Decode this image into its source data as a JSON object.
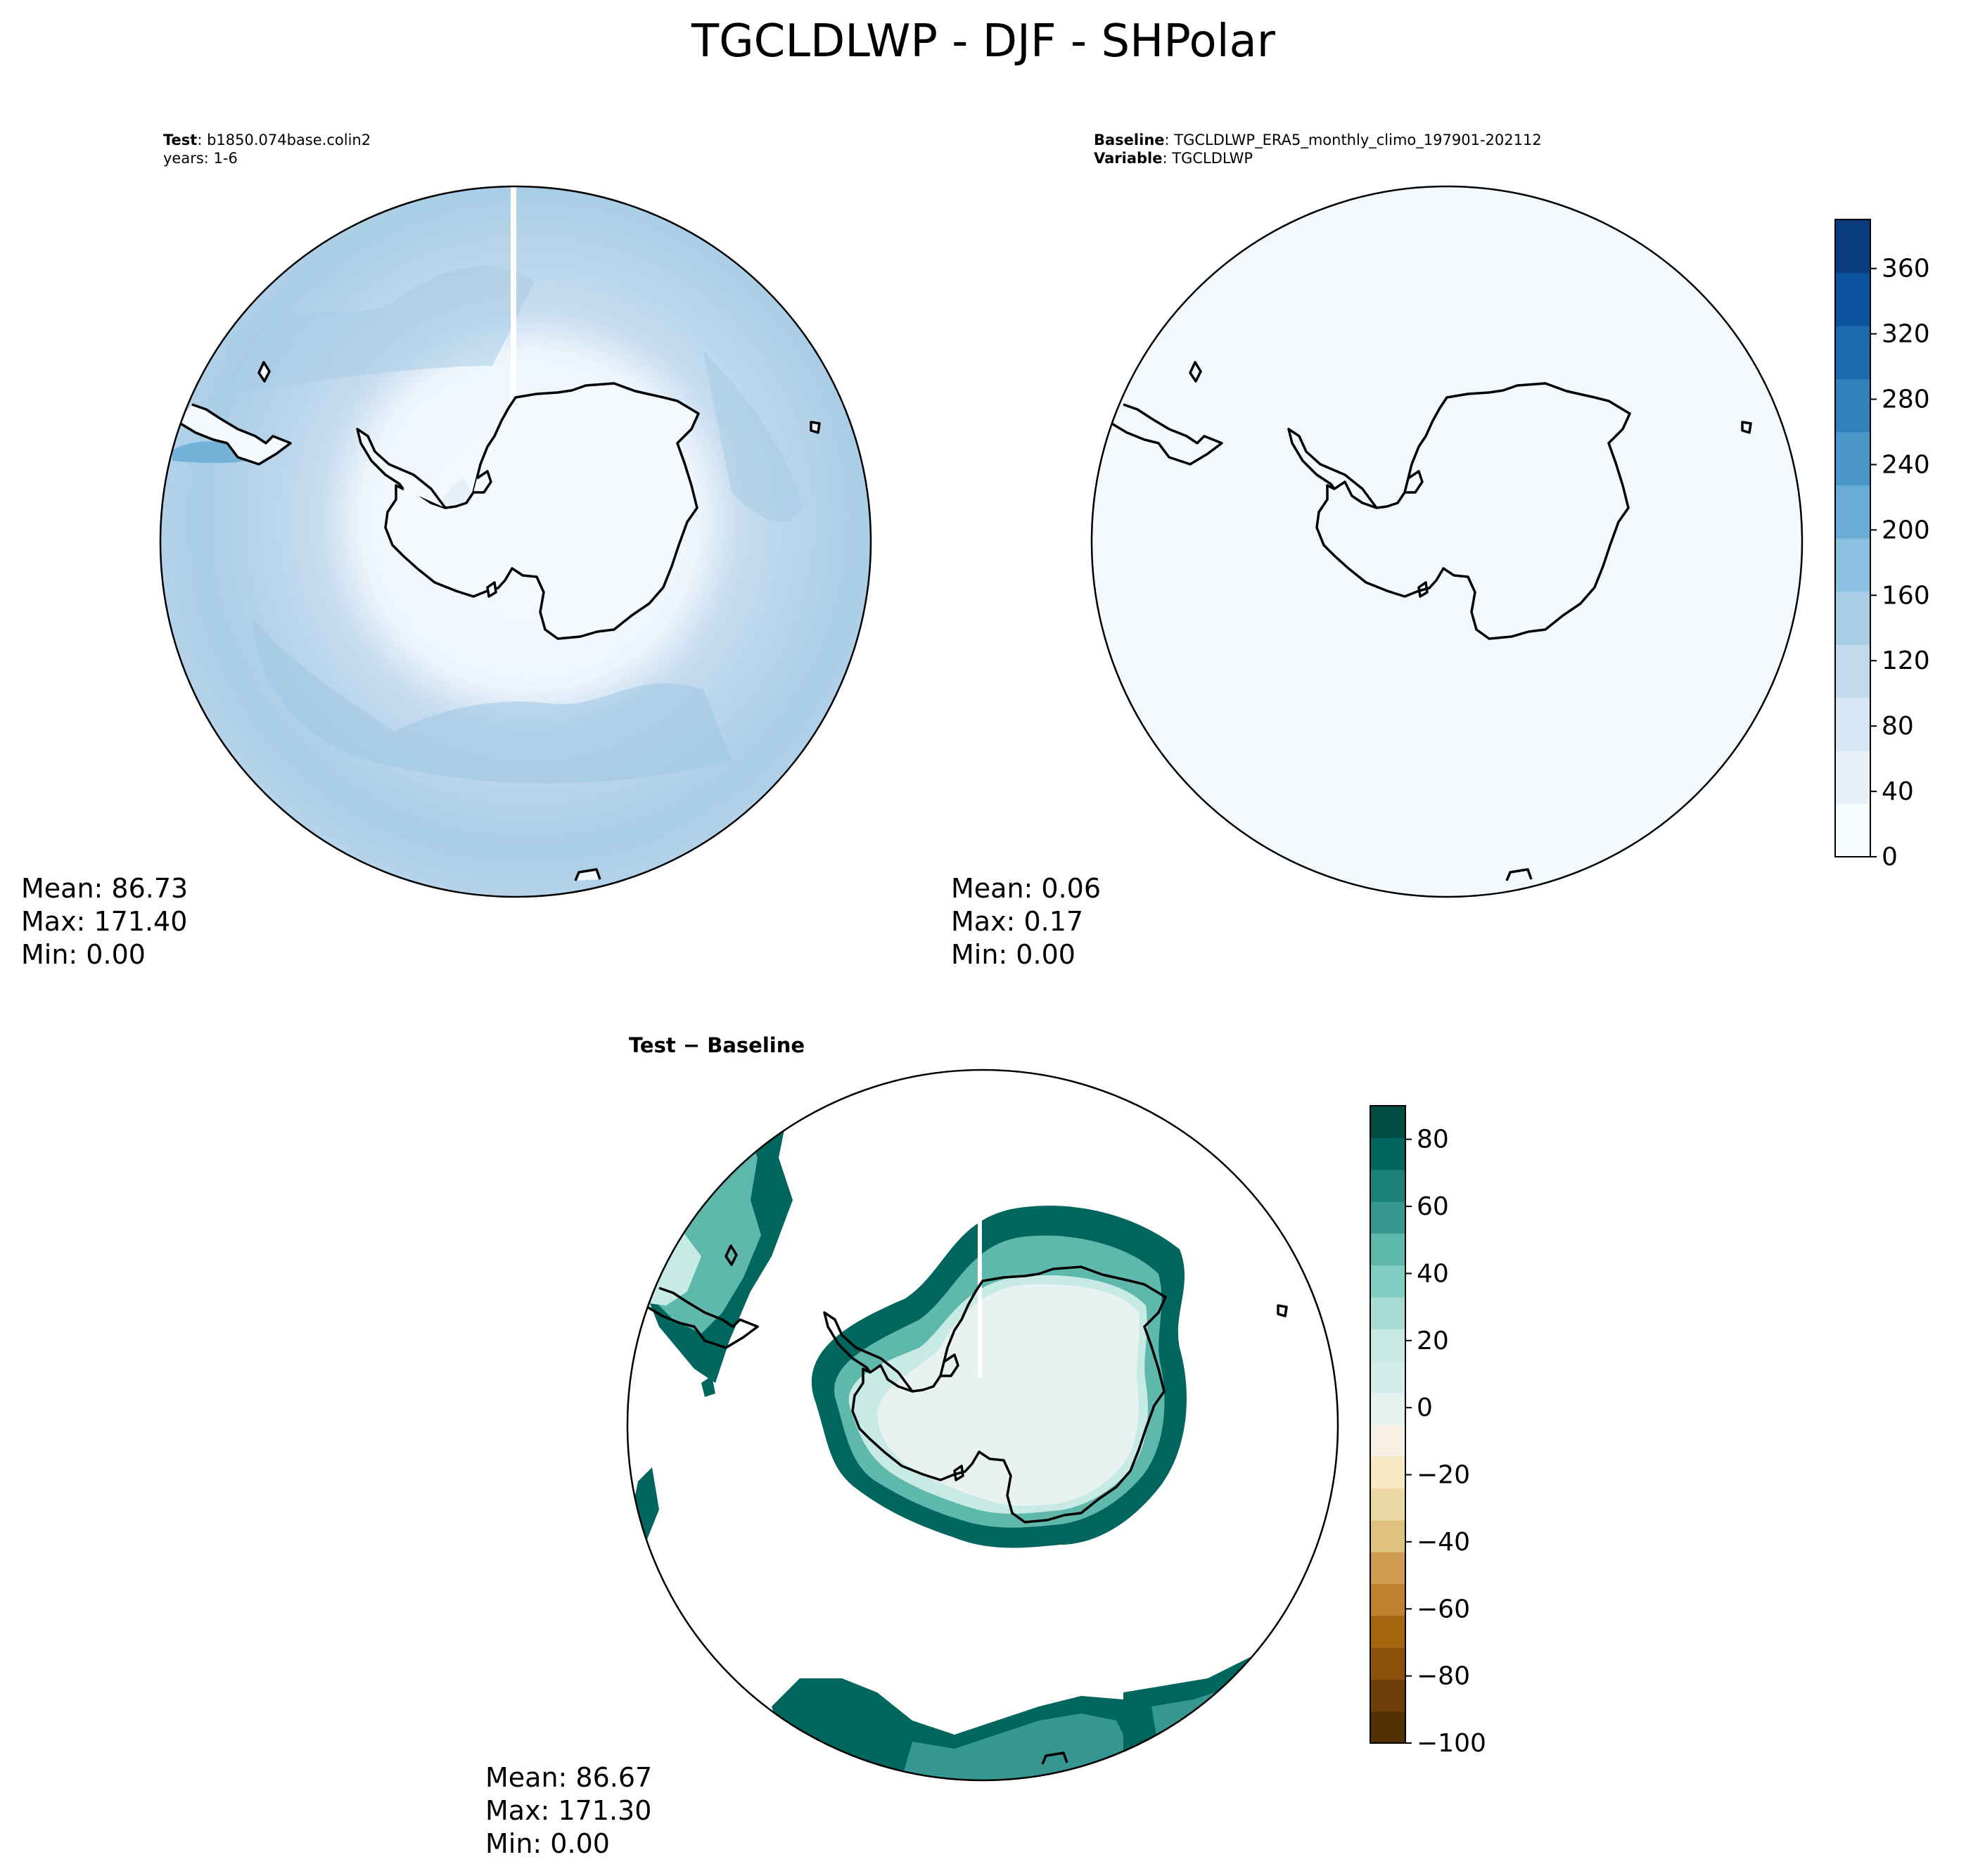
{
  "figure": {
    "suptitle": "TGCLDLWP - DJF - SHPolar"
  },
  "chart_data": [
    {
      "type": "heatmap",
      "projection": "south-polar-stereographic",
      "header": [
        {
          "bold": "Test",
          "text": ": b1850.074base.colin2"
        },
        {
          "bold": "",
          "text": "years: 1-6"
        }
      ],
      "stats": {
        "mean": "Mean: 86.73",
        "max": "Max: 171.40",
        "min": "Min:  0.00"
      },
      "field_description": "ocean values mostly 80-170, lowest over the ice sheet interior",
      "colormap": "Blues"
    },
    {
      "type": "heatmap",
      "projection": "south-polar-stereographic",
      "header": [
        {
          "bold": "Baseline",
          "text": ": TGCLDLWP_ERA5_monthly_climo_197901-202112"
        },
        {
          "bold": "Variable",
          "text": ": TGCLDLWP"
        }
      ],
      "stats": {
        "mean": "Mean:  0.06",
        "max": "Max:  0.17",
        "min": "Min:  0.00"
      },
      "colormap": "Blues",
      "colorbar": {
        "ticks": [
          "0",
          "40",
          "80",
          "120",
          "160",
          "200",
          "240",
          "280",
          "320",
          "360"
        ],
        "tick_values": [
          0,
          40,
          80,
          120,
          160,
          200,
          240,
          280,
          320,
          360
        ],
        "range": [
          0,
          390
        ],
        "colors": [
          "#f7fbff",
          "#e8f1fa",
          "#d6e6f4",
          "#c2d9ee",
          "#a8cde6",
          "#8ac0e0",
          "#69add6",
          "#4a98c9",
          "#3181bd",
          "#1c6aaf",
          "#0a539e",
          "#083c7d"
        ]
      }
    },
    {
      "type": "heatmap",
      "projection": "south-polar-stereographic",
      "header": [
        {
          "bold": "Test − Baseline",
          "text": ""
        }
      ],
      "stats": {
        "mean": "Mean: 86.67",
        "max": "Max: 171.30",
        "min": "Min:  0.00"
      },
      "colormap": "BrBG",
      "colorbar": {
        "ticks": [
          "−100",
          "−80",
          "−60",
          "−40",
          "−20",
          "0",
          "20",
          "40",
          "60",
          "80"
        ],
        "tick_values": [
          -100,
          -80,
          -60,
          -40,
          -20,
          0,
          20,
          40,
          60,
          80
        ],
        "range": [
          -100,
          90
        ],
        "colors": [
          "#543005",
          "#6e3f08",
          "#8c510a",
          "#a5650f",
          "#bf812d",
          "#cd9c51",
          "#dfc27d",
          "#ecd8a4",
          "#f6e8c3",
          "#f5f0e3",
          "#e6f2f0",
          "#d2ede9",
          "#c7eae5",
          "#a7dcd3",
          "#80cdc1",
          "#5fb8ac",
          "#35978f",
          "#1c8077",
          "#01665e",
          "#004d44"
        ]
      }
    }
  ]
}
